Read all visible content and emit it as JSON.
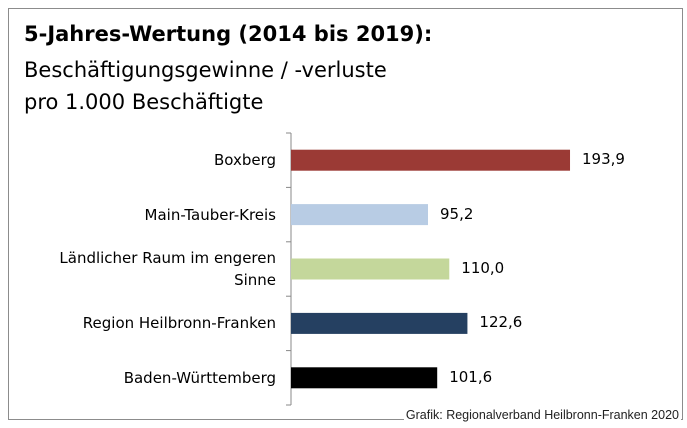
{
  "chart_data": {
    "type": "barh",
    "title": "5-Jahres-Wertung (2014  bis 2019):",
    "subtitle": [
      "Beschäftigungsgewinne / -verluste",
      "pro 1.000 Beschäftigte"
    ],
    "categories": [
      "Boxberg",
      "Main-Tauber-Kreis",
      "Ländlicher Raum im engeren Sinne",
      "Region Heilbronn-Franken",
      "Baden-Württemberg"
    ],
    "values": [
      193.9,
      95.2,
      110.0,
      122.6,
      101.6
    ],
    "value_labels": [
      "193,9",
      "95,2",
      "110,0",
      "122,6",
      "101,6"
    ],
    "colors": [
      "#9b3a35",
      "#b8cce4",
      "#c4d79b",
      "#254061",
      "#000000"
    ],
    "source": "Grafik: Regionalverband Heilbronn-Franken 2020"
  }
}
